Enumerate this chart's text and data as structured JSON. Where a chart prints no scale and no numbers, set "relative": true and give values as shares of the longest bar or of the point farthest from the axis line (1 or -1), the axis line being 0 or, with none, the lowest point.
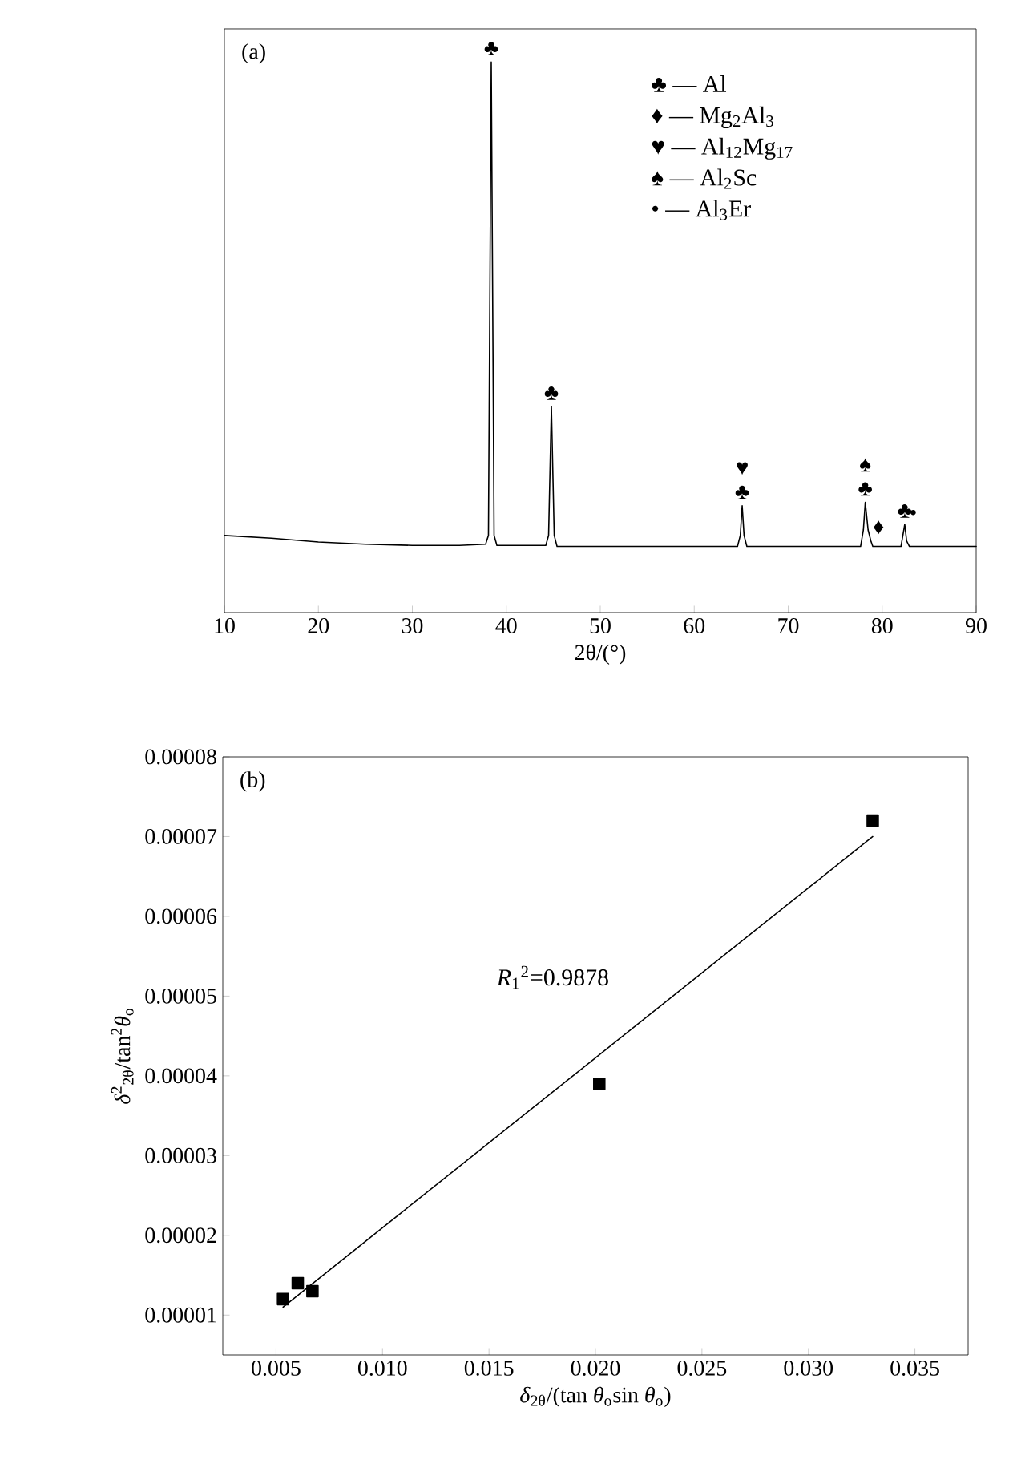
{
  "chart_data": [
    {
      "type": "line",
      "relative": true,
      "xlabel": "2θ/(°)",
      "color": "#000000",
      "line_style": "solid",
      "marker": "none",
      "x": [
        10,
        15,
        20,
        25,
        30,
        35,
        37.8,
        38.1,
        38.4,
        38.7,
        39.0,
        44.2,
        44.5,
        44.8,
        45.1,
        45.4,
        64.6,
        64.9,
        65.1,
        65.3,
        65.6,
        77.7,
        78.0,
        78.2,
        78.5,
        78.8,
        79.0,
        82.0,
        82.2,
        82.4,
        82.6,
        82.9,
        90
      ],
      "values": [
        0.14,
        0.135,
        0.128,
        0.124,
        0.122,
        0.122,
        0.124,
        0.14,
        1.0,
        0.14,
        0.122,
        0.122,
        0.14,
        0.374,
        0.14,
        0.12,
        0.12,
        0.14,
        0.194,
        0.14,
        0.12,
        0.12,
        0.15,
        0.2,
        0.15,
        0.13,
        0.12,
        0.12,
        0.14,
        0.16,
        0.13,
        0.12,
        0.12
      ],
      "xlim": [
        10,
        90
      ],
      "xticks": [
        10,
        20,
        30,
        40,
        50,
        60,
        70,
        80,
        90
      ],
      "annotations": [
        {
          "text": "♣",
          "x": 38.4,
          "y": 1.0
        },
        {
          "text": "♣",
          "x": 44.8,
          "y": 0.374
        },
        {
          "text": "♣",
          "x": 65.1,
          "y": 0.194
        },
        {
          "text": "♥",
          "x": 65.1,
          "y": 0.194
        },
        {
          "text": "♣",
          "x": 78.2,
          "y": 0.2
        },
        {
          "text": "♠",
          "x": 78.2,
          "y": 0.2
        },
        {
          "text": "♦",
          "x": 78.8,
          "y": 0.13
        },
        {
          "text": "♣",
          "x": 82.4,
          "y": 0.16
        },
        {
          "text": "•",
          "x": 83.3,
          "y": 0.156
        },
        "(a)",
        "♣ — Al",
        "♦ — Mg$_{2}$Al$_{3}$",
        "♥ — Al$_{12}$Mg$_{17}$",
        "♠ — Al$_{2}$Sc",
        "• — Al$_{3}$Er"
      ]
    },
    {
      "type": "scatter",
      "xlabel": "*δ*$_{2θ}$/(tan *θ*$_{o}$sin *θ*$_{o}$)",
      "ylabel": "*δ*$^{2}$$_{2θ}$/tan$^{2}$*θ*$_{o}$",
      "series": [
        {
          "type": "scatter",
          "marker": "square",
          "color": "#000000",
          "x": [
            0.00533,
            0.00602,
            0.00671,
            0.02018,
            0.03302
          ],
          "values": [
            1.2e-05,
            1.4e-05,
            1.3e-05,
            3.9e-05,
            7.2e-05
          ]
        },
        {
          "type": "line",
          "marker": "none",
          "line_style": "solid",
          "color": "#000000",
          "x": [
            0.00533,
            0.03302
          ],
          "values": [
            1.1e-05,
            7e-05
          ]
        }
      ],
      "xlim": [
        0.0025,
        0.0375
      ],
      "ylim": [
        5e-06,
        8e-05
      ],
      "xticks": [
        {
          "value": 0.005,
          "label": "0.005"
        },
        {
          "value": 0.01,
          "label": "0.010"
        },
        {
          "value": 0.015,
          "label": "0.015"
        },
        {
          "value": 0.02,
          "label": "0.020"
        },
        {
          "value": 0.025,
          "label": "0.025"
        },
        {
          "value": 0.03,
          "label": "0.030"
        },
        {
          "value": 0.035,
          "label": "0.035"
        }
      ],
      "yticks": [
        {
          "value": 1e-05,
          "label": "0.00001"
        },
        {
          "value": 2e-05,
          "label": "0.00002"
        },
        {
          "value": 3e-05,
          "label": "0.00003"
        },
        {
          "value": 4e-05,
          "label": "0.00004"
        },
        {
          "value": 5e-05,
          "label": "0.00005"
        },
        {
          "value": 6e-05,
          "label": "0.00006"
        },
        {
          "value": 7e-05,
          "label": "0.00007"
        },
        {
          "value": 8e-05,
          "label": "0.00008"
        }
      ],
      "annotations": [
        "(b)",
        "*R*$_{1}$$^{2}$=0.9878"
      ]
    }
  ]
}
